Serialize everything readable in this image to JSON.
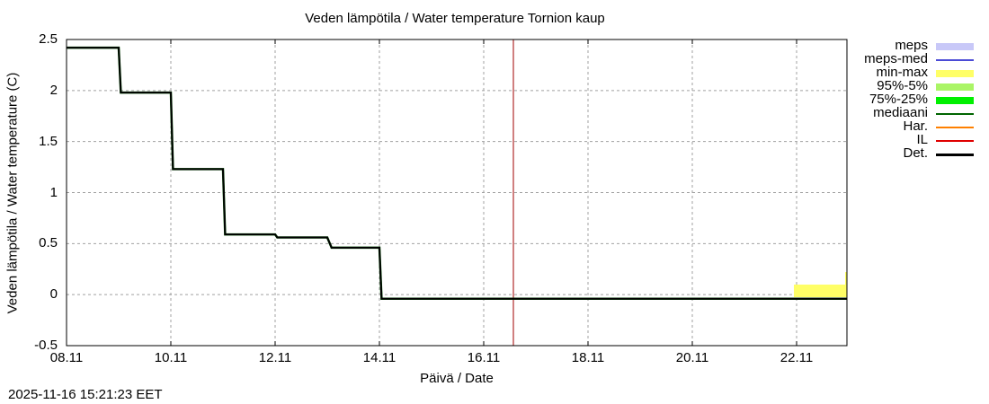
{
  "title": "Veden lämpötila / Water temperature Tornion kaup",
  "ylabel": "Veden lämpötila / Water temperature (C)",
  "xlabel": "Päivä / Date",
  "timestamp": "2025-11-16 15:21:23 EET",
  "legend": [
    {
      "label": "meps",
      "color": "#c8c8f8",
      "kind": "band"
    },
    {
      "label": "meps-med",
      "color": "#4b4bd6",
      "kind": "line"
    },
    {
      "label": "min-max",
      "color": "#ffff66",
      "kind": "band"
    },
    {
      "label": "95%-5%",
      "color": "#aaf566",
      "kind": "band"
    },
    {
      "label": "75%-25%",
      "color": "#00f000",
      "kind": "band"
    },
    {
      "label": "mediaani",
      "color": "#006400",
      "kind": "line"
    },
    {
      "label": "Har.",
      "color": "#ff8000",
      "kind": "line"
    },
    {
      "label": "IL",
      "color": "#e00000",
      "kind": "line"
    },
    {
      "label": "Det.",
      "color": "#000000",
      "kind": "line"
    }
  ],
  "chart_data": {
    "type": "line",
    "title": "Veden lämpötila / Water temperature Tornion kaup",
    "xlabel": "Päivä / Date",
    "ylabel": "Veden lämpötila / Water temperature (C)",
    "ylim": [
      -0.5,
      2.5
    ],
    "xlim": [
      "08.11",
      "23.11"
    ],
    "yticks": [
      "2.5",
      "2",
      "1.5",
      "1",
      "0.5",
      "0",
      "-0.5"
    ],
    "xticks": [
      "08.11",
      "10.11",
      "12.11",
      "14.11",
      "16.11",
      "18.11",
      "20.11",
      "22.11"
    ],
    "grid": true,
    "legend_position": "right",
    "series": [
      {
        "name": "Det.",
        "points": [
          [
            "08.11 00:00",
            2.42
          ],
          [
            "09.11 00:00",
            2.42
          ],
          [
            "09.11 01:00",
            1.98
          ],
          [
            "10.11 00:00",
            1.98
          ],
          [
            "10.11 01:00",
            1.23
          ],
          [
            "11.11 00:00",
            1.23
          ],
          [
            "11.11 01:00",
            0.59
          ],
          [
            "12.11 00:00",
            0.59
          ],
          [
            "12.11 01:00",
            0.56
          ],
          [
            "13.11 00:00",
            0.56
          ],
          [
            "13.11 02:00",
            0.46
          ],
          [
            "14.11 00:00",
            0.46
          ],
          [
            "14.11 01:00",
            -0.04
          ],
          [
            "23.11 00:00",
            -0.04
          ]
        ]
      },
      {
        "name": "mediaani",
        "points": "follows Det. closely"
      },
      {
        "name": "min-max",
        "band": [
          [
            "22.11 00:00",
            -0.04,
            0.1
          ],
          [
            "23.11 00:00",
            -0.04,
            0.22
          ]
        ]
      }
    ],
    "annotations": [
      {
        "type": "vline",
        "x": "16.11 15:21",
        "color": "#a00000",
        "label": "IL / current time"
      }
    ]
  }
}
